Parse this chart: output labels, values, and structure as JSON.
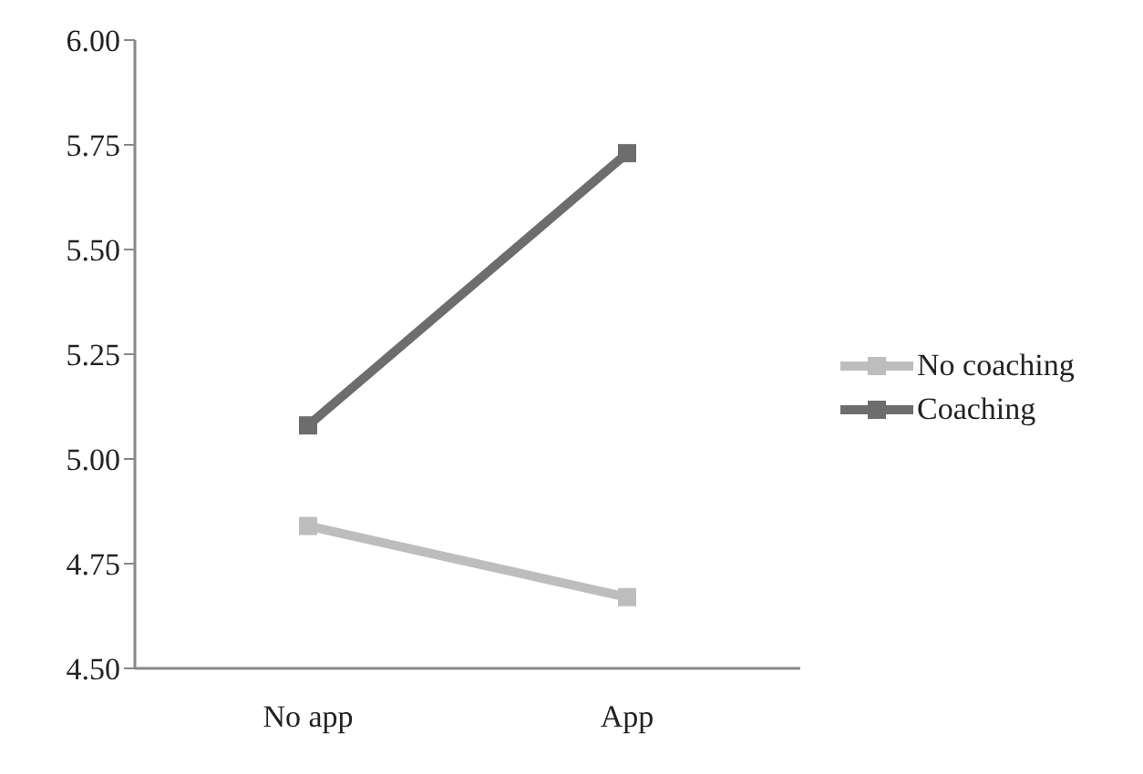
{
  "chart_data": {
    "type": "line",
    "categories": [
      "No app",
      "App"
    ],
    "series": [
      {
        "name": "No coaching",
        "color": "#bdbdbd",
        "values": [
          4.84,
          4.67
        ]
      },
      {
        "name": "Coaching",
        "color": "#6d6d6d",
        "values": [
          5.08,
          5.73
        ]
      }
    ],
    "ylim": [
      4.5,
      6.0
    ],
    "yticks": [
      {
        "value": 4.5,
        "label": "4.50"
      },
      {
        "value": 4.75,
        "label": "4.75"
      },
      {
        "value": 5.0,
        "label": "5.00"
      },
      {
        "value": 5.25,
        "label": "5.25"
      },
      {
        "value": 5.5,
        "label": "5.50"
      },
      {
        "value": 5.75,
        "label": "5.75"
      },
      {
        "value": 6.0,
        "label": "6.00"
      }
    ],
    "grid": false,
    "legend": "right",
    "marker": "square",
    "line_style": "solid"
  }
}
